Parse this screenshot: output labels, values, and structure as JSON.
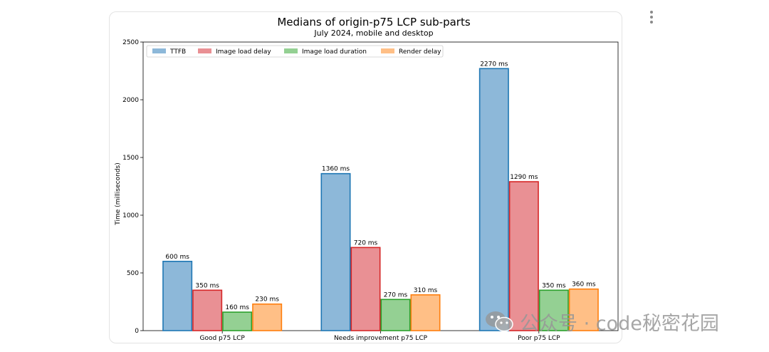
{
  "chart_data": {
    "type": "bar",
    "title": "Medians of origin-p75 LCP sub-parts",
    "subtitle": "July 2024, mobile and desktop",
    "xlabel": "",
    "ylabel": "Time (milliseconds)",
    "ylim": [
      0,
      2500
    ],
    "yticks": [
      0,
      500,
      1000,
      1500,
      2000,
      2500
    ],
    "categories": [
      "Good p75 LCP",
      "Needs improvement p75 LCP",
      "Poor p75 LCP"
    ],
    "legend_position": "top-left",
    "grid": false,
    "series": [
      {
        "name": "TTFB",
        "values": [
          600,
          1360,
          2270
        ],
        "labels": [
          "600 ms",
          "1360 ms",
          "2270 ms"
        ],
        "fill": "#8db8d9",
        "stroke": "#1f77b4"
      },
      {
        "name": "Image load delay",
        "values": [
          350,
          720,
          1290
        ],
        "labels": [
          "350 ms",
          "720 ms",
          "1290 ms"
        ],
        "fill": "#e99094",
        "stroke": "#d62728"
      },
      {
        "name": "Image load duration",
        "values": [
          160,
          270,
          350
        ],
        "labels": [
          "160 ms",
          "270 ms",
          "350 ms"
        ],
        "fill": "#94d093",
        "stroke": "#2ca02c"
      },
      {
        "name": "Render delay",
        "values": [
          230,
          310,
          360
        ],
        "labels": [
          "230 ms",
          "310 ms",
          "360 ms"
        ],
        "fill": "#ffbf86",
        "stroke": "#ff7f0e"
      }
    ]
  },
  "watermark": {
    "text": "公众号 · code秘密花园",
    "icon": "wechat-icon"
  },
  "menu_icon": "more-vertical-icon"
}
